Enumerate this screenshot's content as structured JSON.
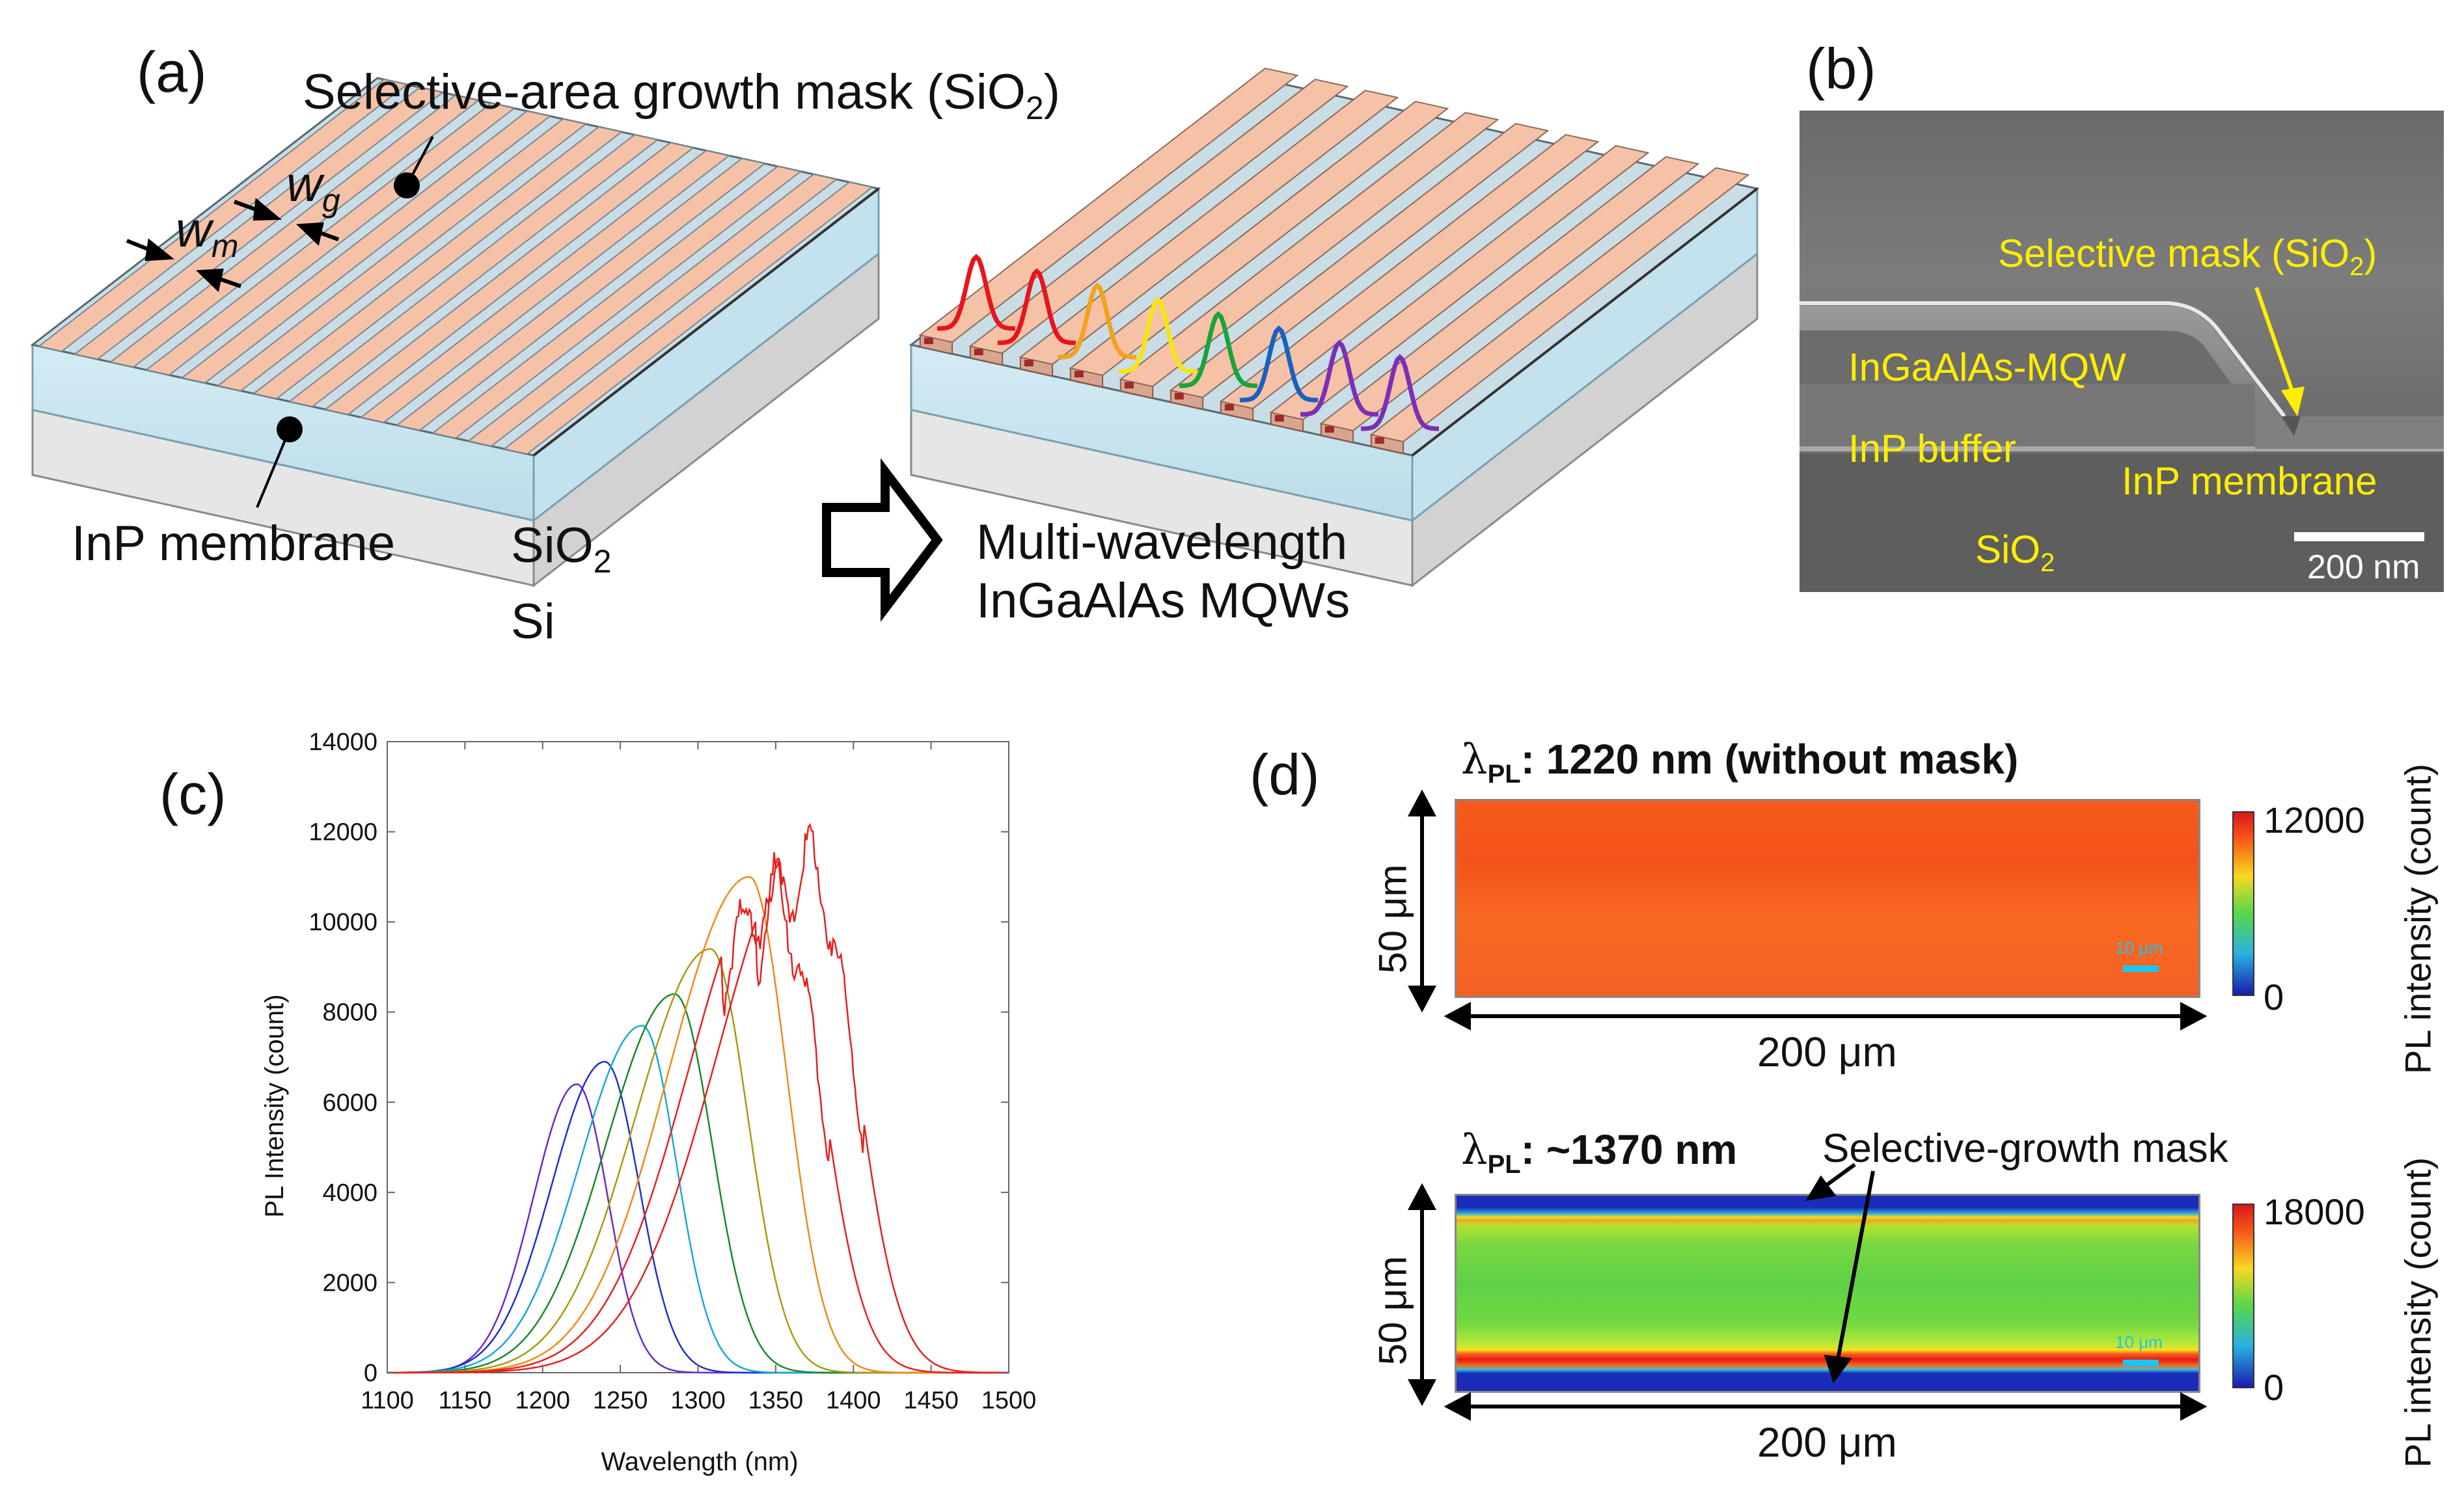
{
  "panel_a": {
    "letter": "(a)",
    "mask_label": "Selective-area growth mask (SiO",
    "mask_sub": "2",
    "mask_close": ")",
    "wg_label": "w",
    "wg_sub": "g",
    "wm_label": "w",
    "wm_sub": "m",
    "membrane_label": "InP membrane",
    "sio2_label": "SiO",
    "sio2_sub": "2",
    "si_label": "Si",
    "result_line1": "Multi-wavelength",
    "result_line2": "InGaAlAs MQWs",
    "spectra_colors": [
      "#e8141c",
      "#e8141c",
      "#f5a21b",
      "#f7e417",
      "#1aa33a",
      "#1860c0",
      "#7b2fb5",
      "#7b2fb5"
    ]
  },
  "panel_b": {
    "letter": "(b)",
    "mask_label": "Selective mask (SiO",
    "mask_sub": "2",
    "mask_close": ")",
    "mqw_label": "InGaAlAs-MQW",
    "buffer_label": "InP buffer",
    "membrane_label": "InP membrane",
    "sio2_label": "SiO",
    "sio2_sub": "2",
    "scale_label": "200 nm"
  },
  "panel_c": {
    "letter": "(c)"
  },
  "chart_data": {
    "type": "line",
    "title": "",
    "xlabel": "Wavelength (nm)",
    "ylabel": "PL Intensity (count)",
    "xlim": [
      1100,
      1500
    ],
    "ylim": [
      0,
      14000
    ],
    "xticks": [
      1100,
      1150,
      1200,
      1250,
      1300,
      1350,
      1400,
      1450,
      1500
    ],
    "yticks": [
      0,
      2000,
      4000,
      6000,
      8000,
      10000,
      12000,
      14000
    ],
    "series": [
      {
        "name": "violet",
        "color": "#6a2bc8",
        "peak": 1222,
        "amplitude": 6400,
        "sigma_left": 28,
        "sigma_right": 20
      },
      {
        "name": "blue",
        "color": "#2230c8",
        "peak": 1240,
        "amplitude": 6900,
        "sigma_left": 34,
        "sigma_right": 22
      },
      {
        "name": "cyan",
        "color": "#18a8d8",
        "peak": 1264,
        "amplitude": 7700,
        "sigma_left": 40,
        "sigma_right": 22
      },
      {
        "name": "green",
        "color": "#1a8a2a",
        "peak": 1285,
        "amplitude": 8400,
        "sigma_left": 44,
        "sigma_right": 24
      },
      {
        "name": "olive",
        "color": "#a89a10",
        "peak": 1308,
        "amplitude": 9400,
        "sigma_left": 48,
        "sigma_right": 24
      },
      {
        "name": "orange",
        "color": "#f08a18",
        "peak": 1333,
        "amplitude": 11000,
        "sigma_left": 52,
        "sigma_right": 24
      },
      {
        "name": "red1",
        "color": "#e82020",
        "peak": 1350,
        "amplitude": 11300,
        "sigma_left": 55,
        "sigma_right": 28
      },
      {
        "name": "red2",
        "color": "#e82020",
        "peak": 1372,
        "amplitude": 12000,
        "sigma_left": 58,
        "sigma_right": 28
      }
    ]
  },
  "panel_d": {
    "letter": "(d)",
    "top": {
      "lambda": "λ",
      "lambda_sub": "PL",
      "title_rest": ": 1220 nm (without mask)",
      "height_label": "50 μm",
      "width_label": "200 μm",
      "scale_max": "12000",
      "scale_min": "0",
      "colorbar_title": "PL intensity (count)",
      "inner_scale": "10 μm"
    },
    "bottom": {
      "lambda": "λ",
      "lambda_sub": "PL",
      "title_rest": ": ~1370 nm",
      "mask_label": "Selective-growth mask",
      "height_label": "50 μm",
      "width_label": "200 μm",
      "scale_max": "18000",
      "scale_min": "0",
      "colorbar_title": "PL intensity (count)",
      "inner_scale": "10 μm"
    }
  }
}
